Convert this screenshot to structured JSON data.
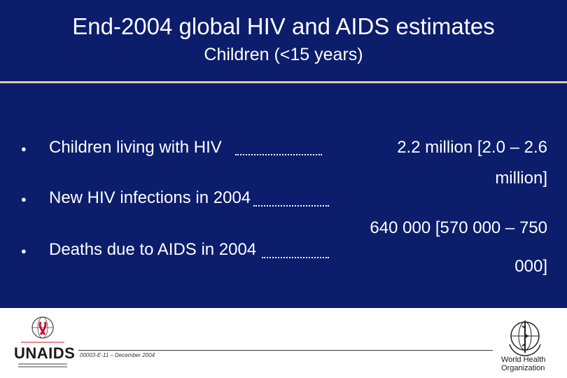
{
  "slide": {
    "title": "End-2004 global HIV and AIDS estimates",
    "subtitle": "Children (<15 years)"
  },
  "items": [
    {
      "label": "Children living with HIV",
      "value_line1": "2.2 million [2.0 – 2.6",
      "value_line2": "million]"
    },
    {
      "label": "New HIV infections in 2004",
      "value_line1": "640 000 [570 000 – 750",
      "value_line2": "000]"
    },
    {
      "label": "Deaths due to AIDS in 2004",
      "value_line1": "",
      "value_line2": ""
    }
  ],
  "footer": {
    "code": "00003-E-11 – December 2004",
    "unaids_wordmark": "UNAIDS",
    "who_wordmark_line1": "World Health",
    "who_wordmark_line2": "Organization"
  },
  "colors": {
    "background": "#0b1d6b",
    "text": "#ffffff",
    "rule": "#d9cfa0"
  }
}
